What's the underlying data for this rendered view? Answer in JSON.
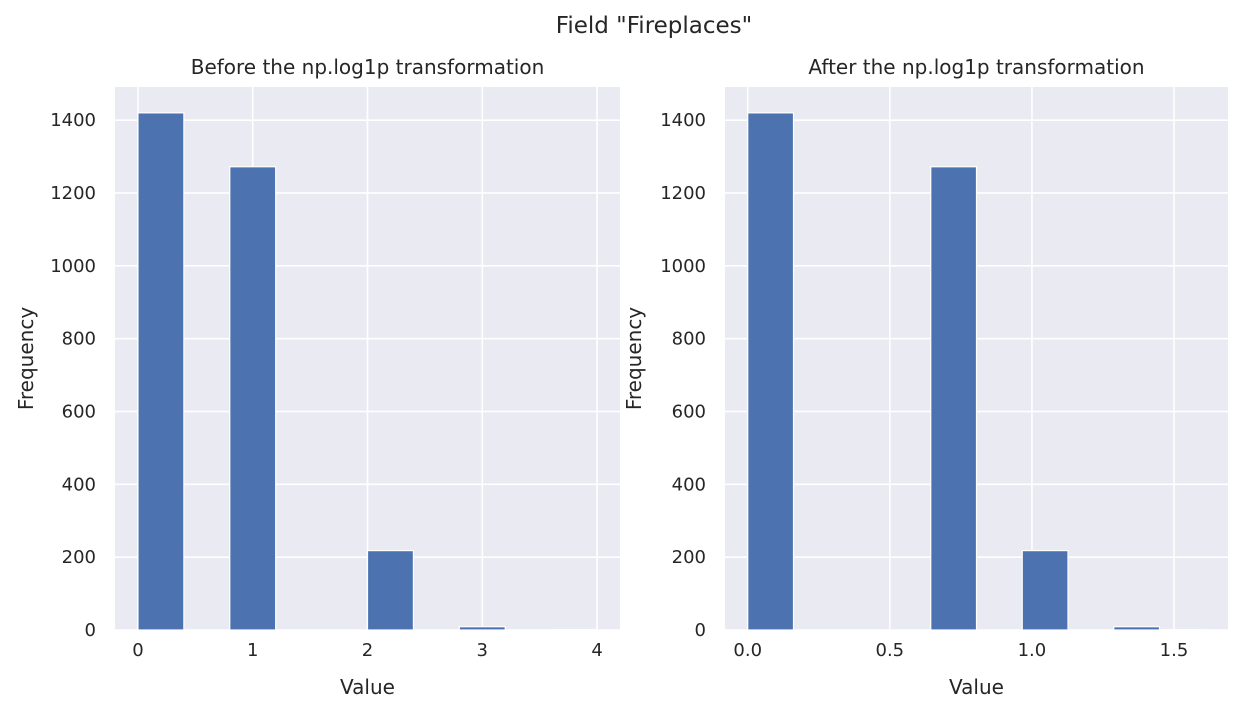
{
  "figure": {
    "suptitle": "Field \"Fireplaces\""
  },
  "colors": {
    "axes_bg": "#eaeaf2",
    "grid": "#ffffff",
    "bar": "#4c72b0"
  },
  "chart_data": [
    {
      "type": "bar",
      "subtype": "histogram",
      "title": "Before the np.log1p transformation",
      "xlabel": "Value",
      "ylabel": "Frequency",
      "xlim": [
        -0.2,
        4.2
      ],
      "ylim": [
        0,
        1491
      ],
      "xticks": [
        0,
        1,
        2,
        3,
        4
      ],
      "xtick_labels": [
        "0",
        "1",
        "2",
        "3",
        "4"
      ],
      "yticks": [
        0,
        200,
        400,
        600,
        800,
        1000,
        1200,
        1400
      ],
      "ytick_labels": [
        "0",
        "200",
        "400",
        "600",
        "800",
        "1000",
        "1200",
        "1400"
      ],
      "grid": true,
      "bins": [
        {
          "x0": 0.0,
          "x1": 0.4,
          "value": 1420
        },
        {
          "x0": 0.4,
          "x1": 0.8,
          "value": 0
        },
        {
          "x0": 0.8,
          "x1": 1.2,
          "value": 1272
        },
        {
          "x0": 1.2,
          "x1": 1.6,
          "value": 0
        },
        {
          "x0": 1.6,
          "x1": 2.0,
          "value": 0
        },
        {
          "x0": 2.0,
          "x1": 2.4,
          "value": 218
        },
        {
          "x0": 2.4,
          "x1": 2.8,
          "value": 0
        },
        {
          "x0": 2.8,
          "x1": 3.2,
          "value": 9
        },
        {
          "x0": 3.2,
          "x1": 3.6,
          "value": 0
        },
        {
          "x0": 3.6,
          "x1": 4.0,
          "value": 1
        }
      ]
    },
    {
      "type": "bar",
      "subtype": "histogram",
      "title": "After the np.log1p transformation",
      "xlabel": "Value",
      "ylabel": "Frequency",
      "xlim": [
        -0.08,
        1.69
      ],
      "ylim": [
        0,
        1491
      ],
      "xticks": [
        0.0,
        0.5,
        1.0,
        1.5
      ],
      "xtick_labels": [
        "0.0",
        "0.5",
        "1.0",
        "1.5"
      ],
      "yticks": [
        0,
        200,
        400,
        600,
        800,
        1000,
        1200,
        1400
      ],
      "ytick_labels": [
        "0",
        "200",
        "400",
        "600",
        "800",
        "1000",
        "1200",
        "1400"
      ],
      "grid": true,
      "bins": [
        {
          "x0": 0.0,
          "x1": 0.161,
          "value": 1420
        },
        {
          "x0": 0.161,
          "x1": 0.322,
          "value": 0
        },
        {
          "x0": 0.322,
          "x1": 0.483,
          "value": 0
        },
        {
          "x0": 0.483,
          "x1": 0.644,
          "value": 0
        },
        {
          "x0": 0.644,
          "x1": 0.805,
          "value": 1272
        },
        {
          "x0": 0.805,
          "x1": 0.966,
          "value": 0
        },
        {
          "x0": 0.966,
          "x1": 1.127,
          "value": 218
        },
        {
          "x0": 1.127,
          "x1": 1.288,
          "value": 0
        },
        {
          "x0": 1.288,
          "x1": 1.449,
          "value": 9
        },
        {
          "x0": 1.449,
          "x1": 1.609,
          "value": 1
        }
      ]
    }
  ]
}
